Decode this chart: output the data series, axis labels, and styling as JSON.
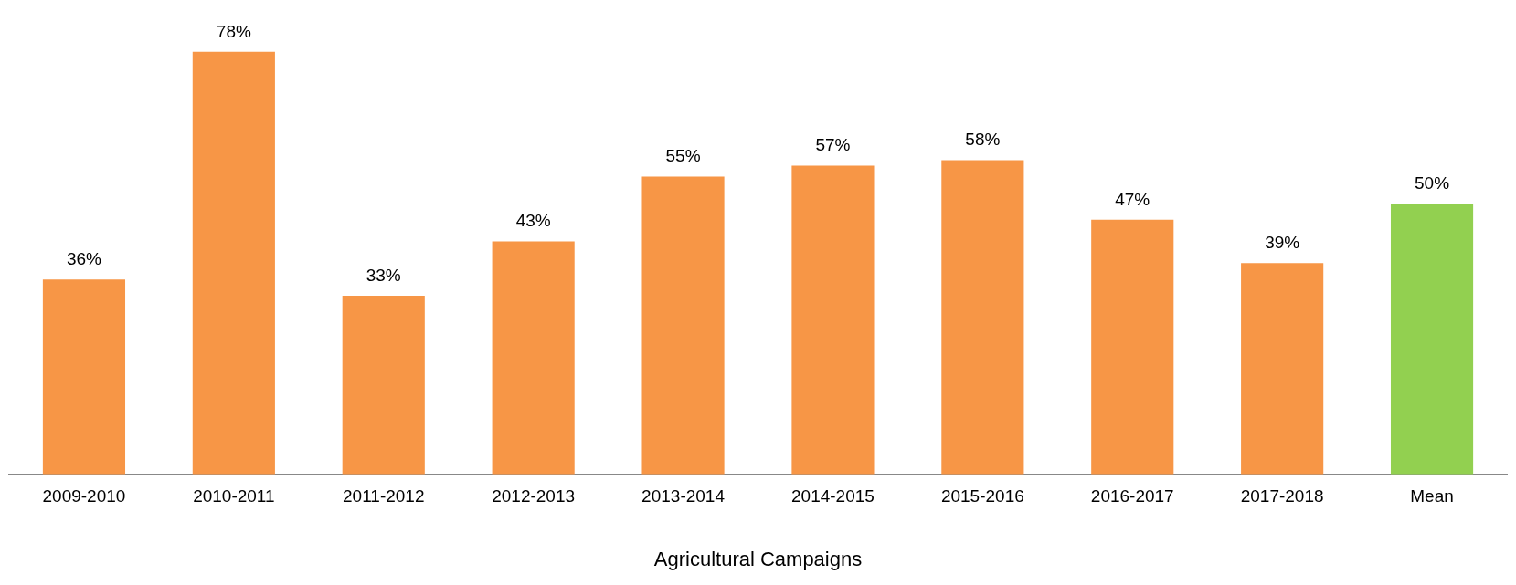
{
  "chart_data": {
    "type": "bar",
    "xlabel": "Agricultural Campaigns",
    "categories": [
      "2009-2010",
      "2010-2011",
      "2011-2012",
      "2012-2013",
      "2013-2014",
      "2014-2015",
      "2015-2016",
      "2016-2017",
      "2017-2018",
      "Mean"
    ],
    "values": [
      36,
      78,
      33,
      43,
      55,
      57,
      58,
      47,
      39,
      50
    ],
    "colors": [
      "#f79646",
      "#f79646",
      "#f79646",
      "#f79646",
      "#f79646",
      "#f79646",
      "#f79646",
      "#f79646",
      "#f79646",
      "#92d050"
    ],
    "value_labels": [
      "36%",
      "78%",
      "33%",
      "43%",
      "55%",
      "57%",
      "58%",
      "47%",
      "39%",
      "50%"
    ]
  }
}
